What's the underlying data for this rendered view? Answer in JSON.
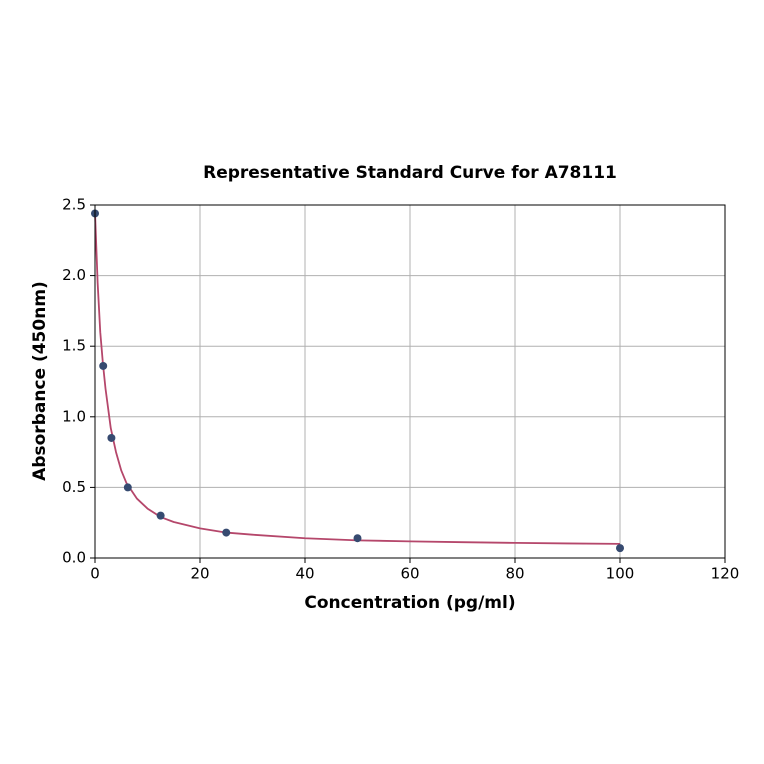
{
  "chart_data": {
    "type": "scatter",
    "title": "Representative Standard Curve for A78111",
    "x_label": "Concentration (pg/ml)",
    "y_label": "Absorbance (450nm)",
    "xlim": [
      0,
      120
    ],
    "ylim": [
      0,
      2.5
    ],
    "xticks": [
      0,
      20,
      40,
      60,
      80,
      100,
      120
    ],
    "yticks": [
      {
        "value": 0,
        "label": "0.0"
      },
      0.5,
      {
        "value": 1,
        "label": "1.0"
      },
      1.5,
      {
        "value": 2,
        "label": "2.0"
      },
      2.5
    ],
    "grid": true,
    "series": [
      {
        "type": "line",
        "color": "#b5476b",
        "x": [
          0,
          0.5,
          1,
          1.5,
          2,
          3,
          4,
          5,
          6,
          8,
          10,
          12.5,
          15,
          20,
          25,
          30,
          40,
          50,
          60,
          70,
          80,
          90,
          100
        ],
        "values": [
          2.45,
          1.95,
          1.6,
          1.38,
          1.2,
          0.92,
          0.75,
          0.62,
          0.53,
          0.42,
          0.35,
          0.29,
          0.255,
          0.21,
          0.18,
          0.165,
          0.14,
          0.125,
          0.118,
          0.112,
          0.107,
          0.103,
          0.1
        ]
      },
      {
        "type": "scatter",
        "color": "#364a70",
        "x": [
          0,
          1.5625,
          3.125,
          6.25,
          12.5,
          25,
          50,
          100
        ],
        "values": [
          2.44,
          1.36,
          0.85,
          0.5,
          0.3,
          0.18,
          0.14,
          0.07
        ]
      }
    ]
  }
}
